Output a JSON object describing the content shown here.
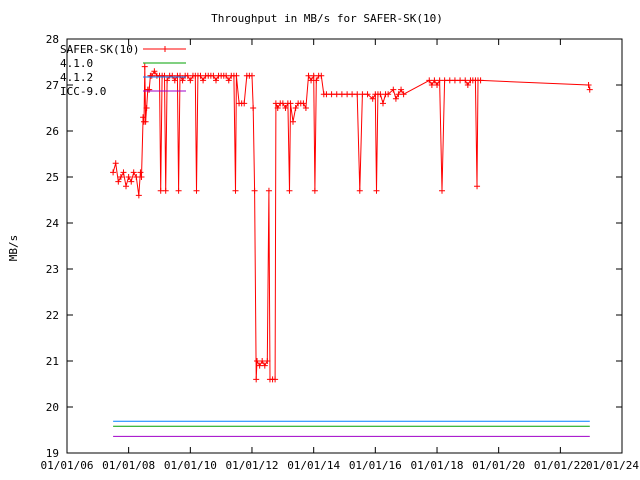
{
  "chart_data": {
    "type": "line",
    "title": "Throughput in MB/s for SAFER-SK(10)",
    "xlabel": "",
    "ylabel": "MB/s",
    "xlim": [
      "2006-01-01",
      "2024-01-01"
    ],
    "ylim": [
      19,
      28
    ],
    "x_ticks": [
      "01/01/06",
      "01/01/08",
      "01/01/10",
      "01/01/12",
      "01/01/14",
      "01/01/16",
      "01/01/18",
      "01/01/20",
      "01/01/22",
      "01/01/24"
    ],
    "y_ticks": [
      "19",
      "20",
      "21",
      "22",
      "23",
      "24",
      "25",
      "26",
      "27",
      "28"
    ],
    "legend_position": "top-left",
    "grid": false,
    "series": [
      {
        "name": "SAFER-SK(10)",
        "color": "#ff0000",
        "style": "line-with-plus-markers",
        "points": [
          [
            "2007-07-01",
            25.1
          ],
          [
            "2007-08-01",
            25.3
          ],
          [
            "2007-09-01",
            24.9
          ],
          [
            "2007-10-01",
            25.0
          ],
          [
            "2007-11-01",
            25.1
          ],
          [
            "2007-12-01",
            24.8
          ],
          [
            "2008-01-01",
            25.0
          ],
          [
            "2008-02-01",
            24.9
          ],
          [
            "2008-03-01",
            25.1
          ],
          [
            "2008-04-01",
            25.0
          ],
          [
            "2008-05-01",
            24.6
          ],
          [
            "2008-05-20",
            25.1
          ],
          [
            "2008-06-01",
            25.0
          ],
          [
            "2008-06-20",
            26.3
          ],
          [
            "2008-07-01",
            26.2
          ],
          [
            "2008-07-10",
            27.4
          ],
          [
            "2008-07-20",
            26.2
          ],
          [
            "2008-08-01",
            26.5
          ],
          [
            "2008-08-15",
            26.9
          ],
          [
            "2008-09-01",
            26.9
          ],
          [
            "2008-09-15",
            27.2
          ],
          [
            "2008-10-01",
            27.2
          ],
          [
            "2008-11-01",
            27.3
          ],
          [
            "2008-12-01",
            27.2
          ],
          [
            "2009-01-01",
            27.2
          ],
          [
            "2009-01-15",
            24.7
          ],
          [
            "2009-02-01",
            27.2
          ],
          [
            "2009-03-01",
            27.2
          ],
          [
            "2009-03-15",
            24.7
          ],
          [
            "2009-04-01",
            27.1
          ],
          [
            "2009-05-01",
            27.2
          ],
          [
            "2009-06-01",
            27.2
          ],
          [
            "2009-07-01",
            27.1
          ],
          [
            "2009-08-01",
            27.2
          ],
          [
            "2009-08-15",
            24.7
          ],
          [
            "2009-09-01",
            27.2
          ],
          [
            "2009-10-01",
            27.1
          ],
          [
            "2009-11-01",
            27.2
          ],
          [
            "2009-12-01",
            27.2
          ],
          [
            "2010-01-01",
            27.1
          ],
          [
            "2010-02-01",
            27.2
          ],
          [
            "2010-03-01",
            27.2
          ],
          [
            "2010-03-15",
            24.7
          ],
          [
            "2010-04-01",
            27.2
          ],
          [
            "2010-05-01",
            27.2
          ],
          [
            "2010-06-01",
            27.1
          ],
          [
            "2010-07-01",
            27.2
          ],
          [
            "2010-08-01",
            27.2
          ],
          [
            "2010-09-01",
            27.2
          ],
          [
            "2010-10-01",
            27.2
          ],
          [
            "2010-11-01",
            27.1
          ],
          [
            "2010-12-01",
            27.2
          ],
          [
            "2011-01-01",
            27.2
          ],
          [
            "2011-02-01",
            27.2
          ],
          [
            "2011-03-01",
            27.2
          ],
          [
            "2011-04-01",
            27.1
          ],
          [
            "2011-05-01",
            27.2
          ],
          [
            "2011-06-01",
            27.2
          ],
          [
            "2011-06-20",
            24.7
          ],
          [
            "2011-07-01",
            27.2
          ],
          [
            "2011-08-01",
            26.6
          ],
          [
            "2011-09-01",
            26.6
          ],
          [
            "2011-10-01",
            26.6
          ],
          [
            "2011-11-01",
            27.2
          ],
          [
            "2011-12-01",
            27.2
          ],
          [
            "2012-01-01",
            27.2
          ],
          [
            "2012-01-15",
            26.5
          ],
          [
            "2012-02-01",
            24.7
          ],
          [
            "2012-02-20",
            20.6
          ],
          [
            "2012-03-01",
            21.0
          ],
          [
            "2012-04-01",
            20.9
          ],
          [
            "2012-05-01",
            21.0
          ],
          [
            "2012-06-01",
            20.9
          ],
          [
            "2012-07-01",
            21.0
          ],
          [
            "2012-07-20",
            24.7
          ],
          [
            "2012-08-01",
            20.6
          ],
          [
            "2012-09-01",
            20.6
          ],
          [
            "2012-10-01",
            20.6
          ],
          [
            "2012-10-10",
            26.6
          ],
          [
            "2012-11-01",
            26.5
          ],
          [
            "2012-12-01",
            26.6
          ],
          [
            "2013-01-01",
            26.6
          ],
          [
            "2013-02-01",
            26.5
          ],
          [
            "2013-03-01",
            26.6
          ],
          [
            "2013-03-20",
            24.7
          ],
          [
            "2013-04-01",
            26.6
          ],
          [
            "2013-05-01",
            26.2
          ],
          [
            "2013-06-01",
            26.5
          ],
          [
            "2013-07-01",
            26.6
          ],
          [
            "2013-08-01",
            26.6
          ],
          [
            "2013-09-01",
            26.6
          ],
          [
            "2013-10-01",
            26.5
          ],
          [
            "2013-11-01",
            27.2
          ],
          [
            "2013-12-01",
            27.1
          ],
          [
            "2014-01-01",
            27.2
          ],
          [
            "2014-01-15",
            24.7
          ],
          [
            "2014-02-01",
            27.1
          ],
          [
            "2014-03-01",
            27.2
          ],
          [
            "2014-04-01",
            27.2
          ],
          [
            "2014-05-01",
            26.8
          ],
          [
            "2014-06-01",
            26.8
          ],
          [
            "2014-08-01",
            26.8
          ],
          [
            "2014-10-01",
            26.8
          ],
          [
            "2014-12-01",
            26.8
          ],
          [
            "2015-02-01",
            26.8
          ],
          [
            "2015-04-01",
            26.8
          ],
          [
            "2015-06-01",
            26.8
          ],
          [
            "2015-07-01",
            24.7
          ],
          [
            "2015-08-01",
            26.8
          ],
          [
            "2015-10-01",
            26.8
          ],
          [
            "2015-12-01",
            26.7
          ],
          [
            "2016-01-01",
            26.8
          ],
          [
            "2016-01-15",
            24.7
          ],
          [
            "2016-02-01",
            26.8
          ],
          [
            "2016-03-01",
            26.8
          ],
          [
            "2016-04-01",
            26.6
          ],
          [
            "2016-05-01",
            26.8
          ],
          [
            "2016-06-01",
            26.8
          ],
          [
            "2016-08-01",
            26.9
          ],
          [
            "2016-09-01",
            26.7
          ],
          [
            "2016-10-01",
            26.8
          ],
          [
            "2016-11-01",
            26.9
          ],
          [
            "2016-12-01",
            26.8
          ],
          [
            "2017-10-01",
            27.1
          ],
          [
            "2017-11-01",
            27.0
          ],
          [
            "2017-12-01",
            27.1
          ],
          [
            "2018-01-01",
            27.0
          ],
          [
            "2018-02-01",
            27.1
          ],
          [
            "2018-03-01",
            24.7
          ],
          [
            "2018-04-01",
            27.1
          ],
          [
            "2018-06-01",
            27.1
          ],
          [
            "2018-08-01",
            27.1
          ],
          [
            "2018-10-01",
            27.1
          ],
          [
            "2018-12-01",
            27.1
          ],
          [
            "2019-01-01",
            27.0
          ],
          [
            "2019-02-01",
            27.1
          ],
          [
            "2019-03-01",
            27.1
          ],
          [
            "2019-04-01",
            27.1
          ],
          [
            "2019-04-20",
            24.8
          ],
          [
            "2019-05-01",
            27.1
          ],
          [
            "2019-06-01",
            27.1
          ],
          [
            "2022-12-01",
            27.0
          ],
          [
            "2022-12-15",
            26.9
          ]
        ]
      },
      {
        "name": "4.1.0",
        "color": "#00a000",
        "style": "line",
        "points": [
          [
            "2007-07-01",
            19.58
          ],
          [
            "2022-12-15",
            19.58
          ]
        ]
      },
      {
        "name": "4.1.2",
        "color": "#0080ff",
        "style": "line",
        "points": [
          [
            "2007-07-01",
            19.69
          ],
          [
            "2022-12-15",
            19.69
          ]
        ]
      },
      {
        "name": "ICC-9.0",
        "color": "#a000c8",
        "style": "line",
        "points": [
          [
            "2007-07-01",
            19.36
          ],
          [
            "2022-12-15",
            19.36
          ]
        ]
      }
    ]
  }
}
